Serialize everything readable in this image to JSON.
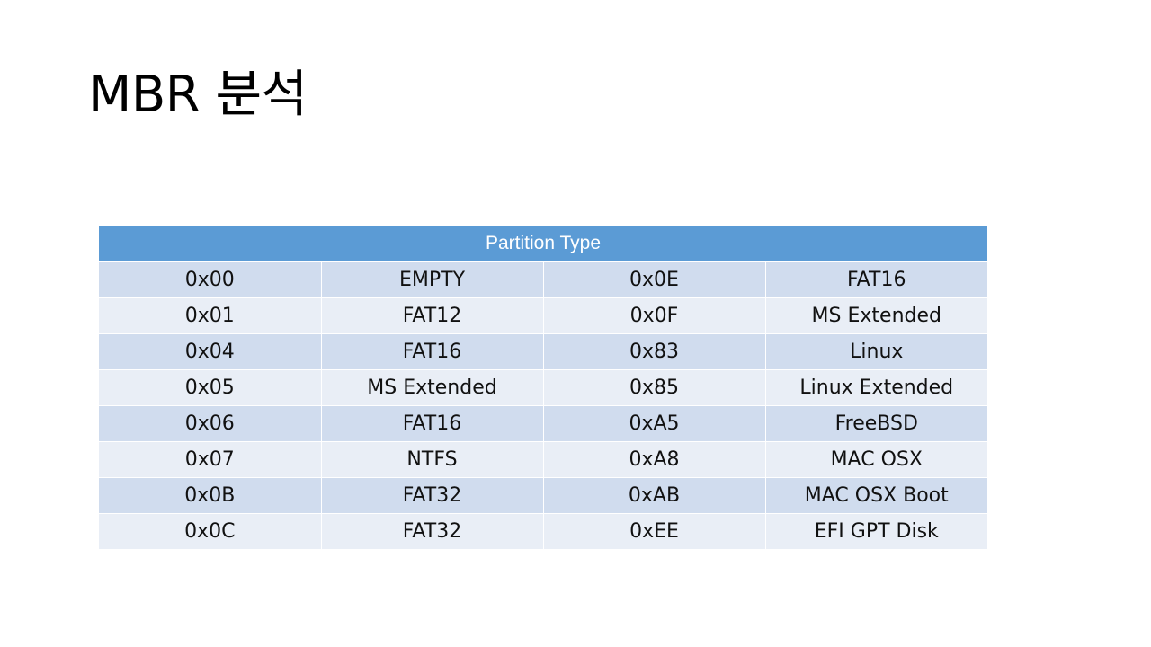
{
  "slide": {
    "title": "MBR 분석"
  },
  "table": {
    "header": "Partition Type",
    "rows": [
      [
        "0x00",
        "EMPTY",
        "0x0E",
        "FAT16"
      ],
      [
        "0x01",
        "FAT12",
        "0x0F",
        "MS Extended"
      ],
      [
        "0x04",
        "FAT16",
        "0x83",
        "Linux"
      ],
      [
        "0x05",
        "MS Extended",
        "0x85",
        "Linux Extended"
      ],
      [
        "0x06",
        "FAT16",
        "0xA5",
        "FreeBSD"
      ],
      [
        "0x07",
        "NTFS",
        "0xA8",
        "MAC OSX"
      ],
      [
        "0x0B",
        "FAT32",
        "0xAB",
        "MAC OSX Boot"
      ],
      [
        "0x0C",
        "FAT32",
        "0xEE",
        "EFI GPT Disk"
      ]
    ]
  },
  "colors": {
    "header_bg": "#5b9bd5",
    "row_odd_bg": "#d0dcee",
    "row_even_bg": "#e9eef6"
  }
}
